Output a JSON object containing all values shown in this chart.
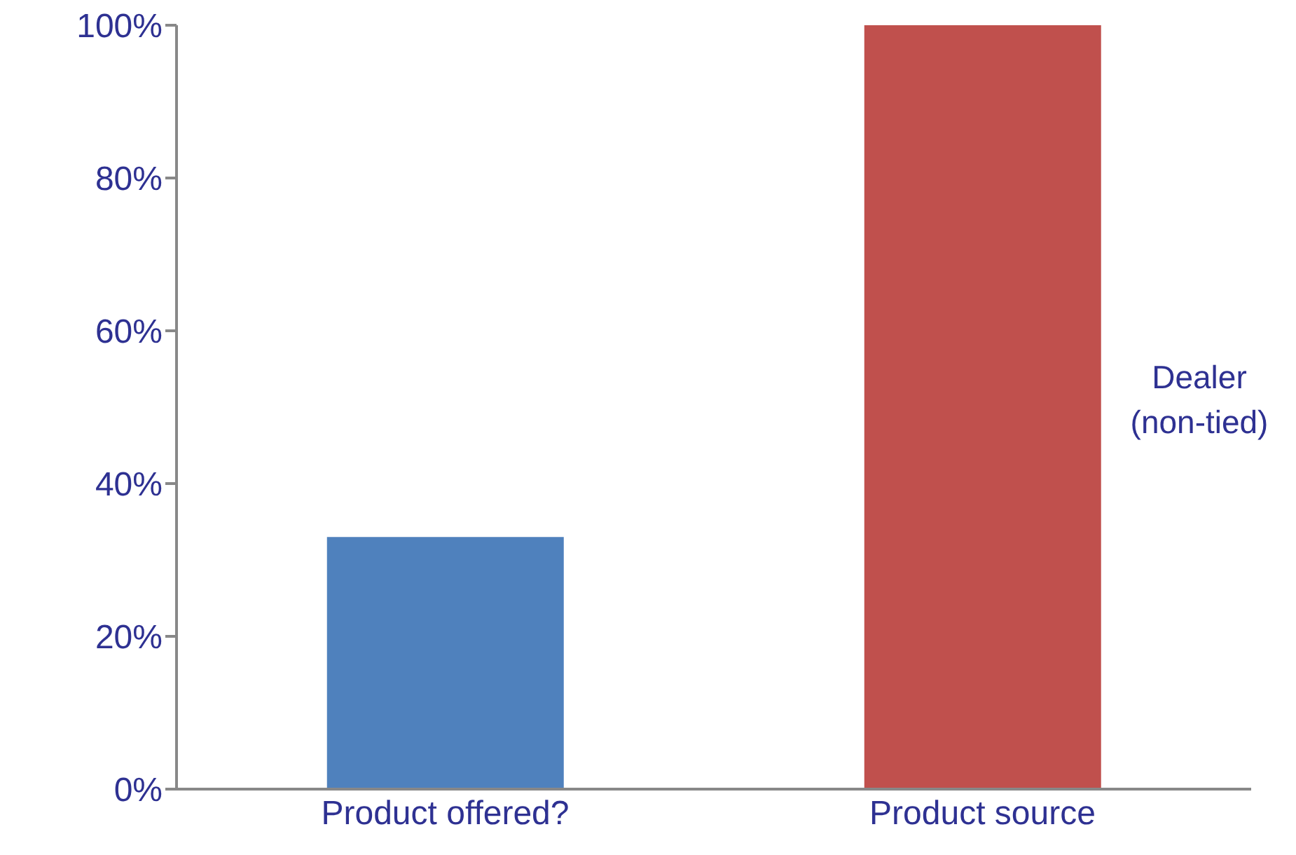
{
  "chart_data": {
    "type": "bar",
    "categories": [
      "Product offered?",
      "Product source"
    ],
    "values": [
      33,
      100
    ],
    "colors": [
      "#4f81bd",
      "#c0504d"
    ],
    "ylim": [
      0,
      100
    ],
    "yticks": [
      {
        "value": 0,
        "label": "0%"
      },
      {
        "value": 20,
        "label": "20%"
      },
      {
        "value": 40,
        "label": "40%"
      },
      {
        "value": 60,
        "label": "60%"
      },
      {
        "value": 80,
        "label": "80%"
      },
      {
        "value": 100,
        "label": "100%"
      }
    ],
    "grid": false,
    "annotations": [
      "Dealer (non-tied)"
    ]
  }
}
